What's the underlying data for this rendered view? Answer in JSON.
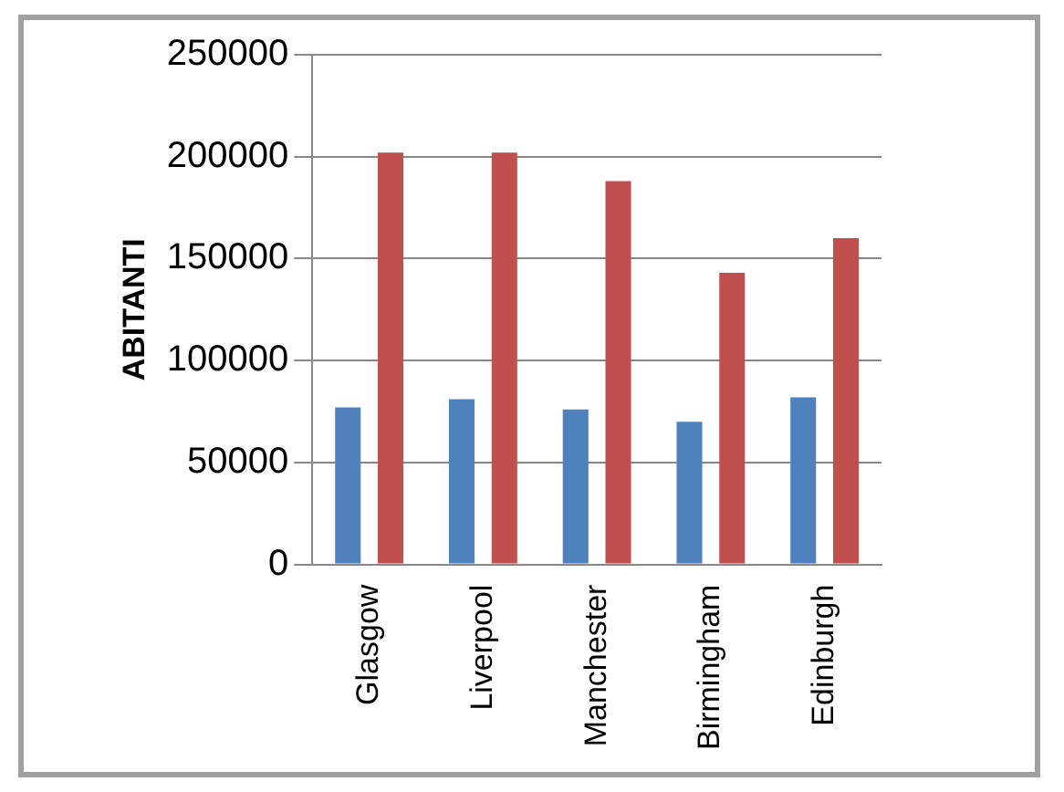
{
  "chart_data": {
    "type": "bar",
    "ylabel": "ABITANTI",
    "categories": [
      "Glasgow",
      "Liverpool",
      "Manchester",
      "Birmingham",
      "Edinburgh"
    ],
    "series": [
      {
        "color": "#4f81bd",
        "values": [
          77000,
          81000,
          76000,
          70000,
          82000
        ]
      },
      {
        "color": "#c0504d",
        "values": [
          202000,
          202000,
          188000,
          143000,
          160000
        ]
      }
    ],
    "ylim": [
      0,
      250000
    ],
    "yticks": [
      0,
      50000,
      100000,
      150000,
      200000,
      250000
    ],
    "grid": "y"
  }
}
